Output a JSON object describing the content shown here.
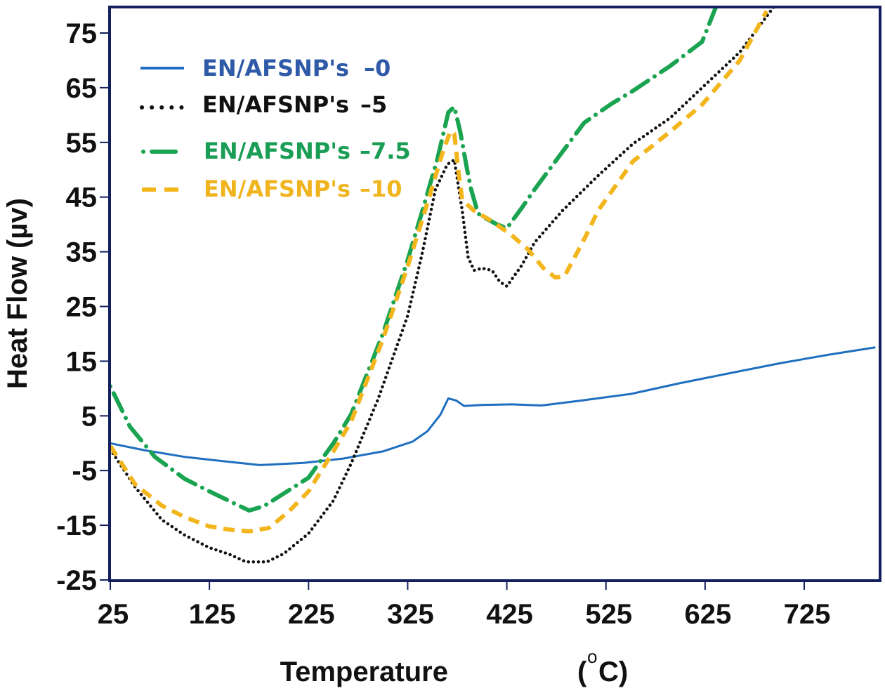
{
  "chart_data": {
    "type": "line",
    "title": "",
    "xlabel": "Temperature",
    "xlabel_unit_open": "(",
    "xlabel_unit_degree": "o",
    "xlabel_unit_rest": "C)",
    "ylabel": "Heat Flow (µv)",
    "xlim": [
      25,
      802
    ],
    "ylim": [
      -25,
      79.8
    ],
    "x_ticks": [
      25,
      125,
      225,
      325,
      425,
      525,
      625,
      725
    ],
    "x_tick_labels": [
      "25",
      "125",
      "225",
      "325",
      "425",
      "525",
      "625",
      "725"
    ],
    "y_ticks": [
      75,
      65,
      55,
      45,
      35,
      25,
      15,
      5,
      -5,
      -15,
      -25
    ],
    "y_tick_labels": [
      "75",
      "65",
      "55",
      "45",
      "35",
      "25",
      "15",
      "5",
      "-5",
      "-15",
      "-25"
    ],
    "grid": false,
    "legend_position": "top-left",
    "series": [
      {
        "name": "EN/AFSNP's –0",
        "legend_prefix": "EN/AFSNP's",
        "legend_suffix": "–0",
        "color": "#1f6fc0",
        "text_color": "#2e5aa8",
        "style": "solid",
        "x": [
          25,
          60,
          100,
          140,
          176,
          220,
          260,
          300,
          330,
          345,
          358,
          366,
          374,
          382,
          400,
          430,
          460,
          500,
          550,
          600,
          650,
          700,
          750,
          796
        ],
        "y": [
          0,
          -1.3,
          -2.5,
          -3.3,
          -4,
          -3.6,
          -2.8,
          -1.5,
          0.3,
          2.2,
          5.2,
          8.2,
          7.8,
          6.8,
          7,
          7.1,
          6.9,
          7.8,
          9,
          11,
          12.8,
          14.6,
          16.2,
          17.5
        ]
      },
      {
        "name": "EN/AFSNP's –5",
        "legend_prefix": "EN/AFSNP's",
        "legend_suffix": "–5",
        "color": "#111111",
        "text_color": "#111111",
        "style": "dotted",
        "x": [
          25,
          50,
          77,
          100,
          125,
          145,
          162,
          183,
          200,
          225,
          250,
          268,
          295,
          325,
          340,
          353,
          365,
          372,
          380,
          386,
          392,
          400,
          410,
          418,
          425,
          440,
          453,
          481,
          517,
          552,
          590,
          622,
          660,
          694
        ],
        "y": [
          -1.1,
          -8,
          -14,
          -16.8,
          -19.1,
          -20.3,
          -21.7,
          -21.7,
          -20.2,
          -16.5,
          -10.5,
          -3.7,
          8,
          23.3,
          35,
          46.4,
          51,
          51.8,
          42.5,
          34,
          31.6,
          32,
          31.6,
          29.5,
          28.7,
          32.5,
          36.7,
          42.5,
          48.9,
          54.7,
          59.5,
          65,
          71.5,
          79.7
        ]
      },
      {
        "name": "EN/AFSNP's –7.5",
        "legend_prefix": "EN/AFSNP's",
        "legend_suffix": "–7.5",
        "color": "#1aa350",
        "text_color": "#1a9e55",
        "style": "dashdot",
        "x": [
          25,
          45,
          70,
          100,
          125,
          150,
          165,
          180,
          200,
          225,
          250,
          268,
          300,
          325,
          339,
          355,
          366,
          372,
          378,
          385,
          389,
          396,
          403,
          415,
          425,
          440,
          453,
          480,
          503,
          530,
          552,
          590,
          622,
          636
        ],
        "y": [
          10.4,
          3,
          -2.5,
          -6.5,
          -8.8,
          -11,
          -12.3,
          -11.5,
          -9.2,
          -6.3,
          0,
          5.3,
          20,
          33.5,
          42,
          52,
          60.5,
          61.5,
          57,
          50,
          46.4,
          42,
          41.2,
          40,
          39.3,
          43,
          46.4,
          53,
          58.6,
          62,
          64.4,
          69,
          73.4,
          79.8
        ]
      },
      {
        "name": "EN/AFSNP's –10",
        "legend_prefix": "EN/AFSNP's",
        "legend_suffix": "–10",
        "color": "#f2b51c",
        "text_color": "#f0b41e",
        "style": "dashed",
        "x": [
          25,
          50,
          77,
          100,
          125,
          145,
          165,
          185,
          205,
          225,
          250,
          268,
          300,
          325,
          345,
          360,
          368,
          372,
          376,
          380,
          392,
          410,
          430,
          446,
          462,
          474,
          483,
          492,
          505,
          517,
          552,
          590,
          622,
          660,
          687
        ],
        "y": [
          -0.5,
          -7.5,
          -11.4,
          -13.5,
          -15.2,
          -15.8,
          -16.1,
          -15.5,
          -12.5,
          -8.8,
          -1.5,
          4,
          19,
          32.3,
          44,
          53,
          57,
          56.6,
          50,
          44.5,
          42.5,
          40.6,
          38,
          35.5,
          32,
          30.3,
          30.5,
          33.5,
          38,
          42.5,
          51.5,
          57,
          61.9,
          70,
          79
        ]
      }
    ]
  }
}
